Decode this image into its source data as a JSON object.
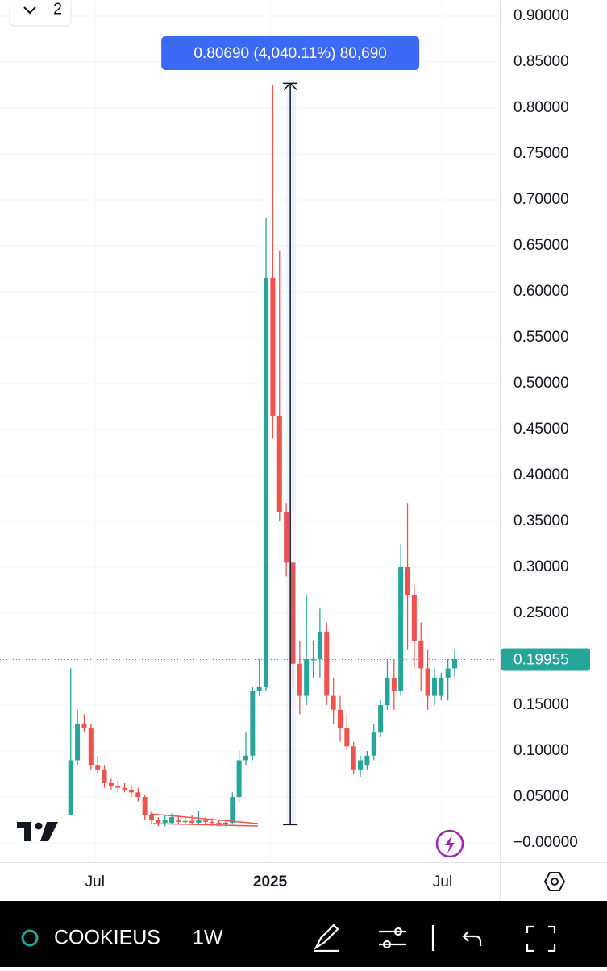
{
  "toolbar": {
    "layout_count": "2"
  },
  "chart_data": {
    "type": "candlestick",
    "up_color": "#26a69a",
    "down_color": "#ef5350",
    "open": [
      0.03,
      0.09,
      0.13,
      0.125,
      0.085,
      0.08,
      0.065,
      0.062,
      0.06,
      0.058,
      0.055,
      0.05,
      0.03,
      0.025,
      0.022,
      0.022,
      0.025,
      0.023,
      0.024,
      0.022,
      0.025,
      0.023,
      0.022,
      0.021,
      0.022,
      0.05,
      0.09,
      0.095,
      0.165,
      0.17,
      0.615,
      0.465,
      0.36,
      0.305,
      0.195,
      0.16,
      0.2,
      0.2,
      0.23,
      0.16,
      0.145,
      0.125,
      0.105,
      0.08,
      0.085,
      0.095,
      0.12,
      0.15,
      0.18,
      0.165,
      0.3,
      0.27,
      0.22,
      0.19,
      0.16,
      0.16,
      0.18,
      0.19
    ],
    "high": [
      0.19,
      0.145,
      0.14,
      0.13,
      0.095,
      0.085,
      0.07,
      0.068,
      0.065,
      0.063,
      0.06,
      0.052,
      0.035,
      0.028,
      0.03,
      0.032,
      0.03,
      0.028,
      0.03,
      0.035,
      0.028,
      0.027,
      0.025,
      0.025,
      0.055,
      0.1,
      0.12,
      0.17,
      0.2,
      0.68,
      0.825,
      0.645,
      0.37,
      0.305,
      0.22,
      0.27,
      0.22,
      0.255,
      0.24,
      0.18,
      0.16,
      0.14,
      0.11,
      0.095,
      0.1,
      0.13,
      0.155,
      0.2,
      0.2,
      0.325,
      0.37,
      0.28,
      0.24,
      0.21,
      0.19,
      0.185,
      0.2,
      0.21
    ],
    "low": [
      0.03,
      0.085,
      0.12,
      0.08,
      0.075,
      0.06,
      0.058,
      0.055,
      0.055,
      0.05,
      0.045,
      0.025,
      0.02,
      0.018,
      0.018,
      0.02,
      0.02,
      0.02,
      0.02,
      0.02,
      0.02,
      0.02,
      0.018,
      0.018,
      0.02,
      0.045,
      0.085,
      0.09,
      0.16,
      0.165,
      0.44,
      0.35,
      0.29,
      0.17,
      0.14,
      0.15,
      0.18,
      0.18,
      0.15,
      0.13,
      0.11,
      0.1,
      0.075,
      0.072,
      0.08,
      0.09,
      0.115,
      0.145,
      0.145,
      0.16,
      0.21,
      0.19,
      0.165,
      0.145,
      0.15,
      0.155,
      0.155,
      0.18
    ],
    "close": [
      0.09,
      0.13,
      0.125,
      0.085,
      0.08,
      0.065,
      0.062,
      0.06,
      0.058,
      0.055,
      0.05,
      0.03,
      0.025,
      0.022,
      0.025,
      0.028,
      0.023,
      0.024,
      0.022,
      0.025,
      0.023,
      0.022,
      0.021,
      0.022,
      0.05,
      0.09,
      0.095,
      0.165,
      0.17,
      0.615,
      0.465,
      0.36,
      0.305,
      0.195,
      0.16,
      0.2,
      0.2,
      0.23,
      0.16,
      0.145,
      0.125,
      0.105,
      0.08,
      0.09,
      0.095,
      0.12,
      0.15,
      0.18,
      0.165,
      0.3,
      0.27,
      0.22,
      0.19,
      0.16,
      0.18,
      0.18,
      0.19,
      0.2
    ],
    "xlim": [
      -10.5,
      63.7
    ],
    "xticks": [
      {
        "value": 3.6,
        "label": "Jul"
      },
      {
        "value": 29.6,
        "label": "2025"
      },
      {
        "value": 55.2,
        "label": "Jul"
      }
    ],
    "ylim": [
      -0.021,
      0.9175
    ],
    "yticks": [
      {
        "value": 0.9,
        "label": "0.90000"
      },
      {
        "value": 0.85,
        "label": "0.85000"
      },
      {
        "value": 0.8,
        "label": "0.80000"
      },
      {
        "value": 0.75,
        "label": "0.75000"
      },
      {
        "value": 0.7,
        "label": "0.70000"
      },
      {
        "value": 0.65,
        "label": "0.65000"
      },
      {
        "value": 0.6,
        "label": "0.60000"
      },
      {
        "value": 0.55,
        "label": "0.55000"
      },
      {
        "value": 0.5,
        "label": "0.50000"
      },
      {
        "value": 0.45,
        "label": "0.45000"
      },
      {
        "value": 0.4,
        "label": "0.40000"
      },
      {
        "value": 0.35,
        "label": "0.35000"
      },
      {
        "value": 0.3,
        "label": "0.30000"
      },
      {
        "value": 0.25,
        "label": "0.25000"
      },
      {
        "value": 0.2,
        "label": "0.20000"
      },
      {
        "value": 0.15,
        "label": "0.15000"
      },
      {
        "value": 0.1,
        "label": "0.10000"
      },
      {
        "value": 0.05,
        "label": "0.05000"
      },
      {
        "value": 0,
        "label": "−0.00000"
      }
    ],
    "grid": true,
    "last_price": 0.19955,
    "measure": {
      "at": 32.6,
      "from": 0.0199,
      "to": 0.8268,
      "label": "0.80690 (4,040.11%) 80,690"
    }
  },
  "bottom_bar": {
    "symbol": "COOKIEUS",
    "interval": "1W"
  }
}
